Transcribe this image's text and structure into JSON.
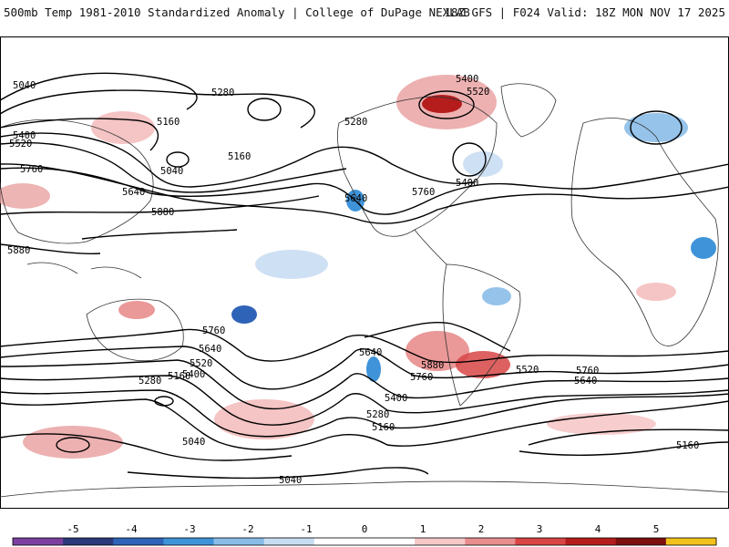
{
  "header": {
    "left_title": "500mb Temp 1981-2010 Standardized Anomaly | College of DuPage NEXLAB",
    "right_title": "18Z GFS | F024 Valid: 18Z MON NOV 17 2025"
  },
  "map": {
    "contour_labels": [
      "5040",
      "5280",
      "5160",
      "5400",
      "5520",
      "5760",
      "5640",
      "5880",
      "5280",
      "5400",
      "5520",
      "5400",
      "5640",
      "5760",
      "5880",
      "5160",
      "5040",
      "5160",
      "5280",
      "5400",
      "5520",
      "5640",
      "5760",
      "5880",
      "5760",
      "5640",
      "5520",
      "5400",
      "5280",
      "5160",
      "5040",
      "5640",
      "5760",
      "5160",
      "5040"
    ]
  },
  "colorbar": {
    "ticks": [
      "-5",
      "-4",
      "-3",
      "-2",
      "-1",
      "0",
      "1",
      "2",
      "3",
      "4",
      "5"
    ],
    "colors": [
      "#7b3fa0",
      "#2b3a7a",
      "#2f63b8",
      "#3f93d9",
      "#89bde8",
      "#c9ddf2",
      "#ffffff",
      "#ffffff",
      "#f6c8c8",
      "#e88d8d",
      "#d84545",
      "#b51d1d",
      "#7d0f0f",
      "#f2c21b"
    ]
  }
}
